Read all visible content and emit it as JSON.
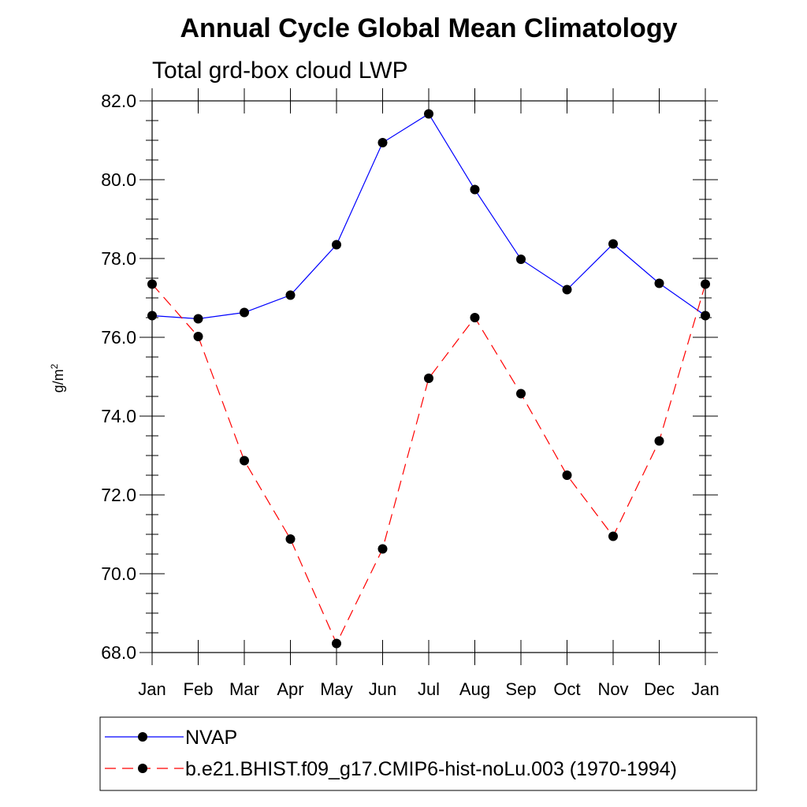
{
  "chart_data": {
    "type": "line",
    "title": "Annual Cycle Global Mean Climatology",
    "subtitle": "Total grd-box cloud LWP",
    "ylabel": "g/m",
    "ylabel_sup": "2",
    "ylim": [
      68.0,
      82.0
    ],
    "yticks": [
      "68.0",
      "70.0",
      "72.0",
      "74.0",
      "76.0",
      "78.0",
      "80.0",
      "82.0"
    ],
    "categories": [
      "Jan",
      "Feb",
      "Mar",
      "Apr",
      "May",
      "Jun",
      "Jul",
      "Aug",
      "Sep",
      "Oct",
      "Nov",
      "Dec",
      "Jan"
    ],
    "grid": false,
    "legend_position": "bottom",
    "series": [
      {
        "name": "NVAP",
        "color": "#0000ff",
        "dash": "solid",
        "values": [
          76.55,
          76.47,
          76.63,
          77.07,
          78.35,
          80.94,
          81.67,
          79.75,
          77.98,
          77.21,
          78.37,
          77.37,
          76.55
        ]
      },
      {
        "name": "b.e21.BHIST.f09_g17.CMIP6-hist-noLu.003 (1970-1994)",
        "color": "#ff0000",
        "dash": "dashed",
        "values": [
          77.35,
          76.02,
          72.87,
          70.88,
          68.23,
          70.63,
          74.96,
          76.5,
          74.57,
          72.5,
          70.95,
          73.37,
          77.35
        ]
      }
    ]
  }
}
